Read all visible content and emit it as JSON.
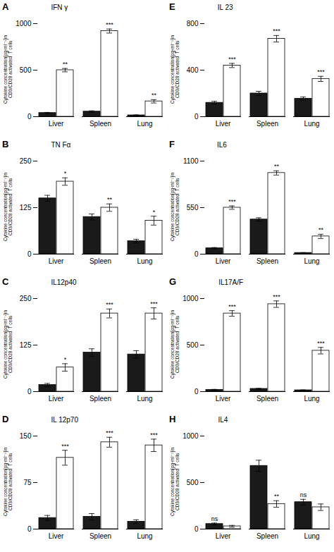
{
  "chart_data": [
    {
      "type": "bar",
      "label": "A",
      "title": "IFN γ",
      "ylabel": "Cytokine concentration[pg⋅ml⁻¹]in\nCD3/CD28 activated  T cells",
      "categories": [
        "Liver",
        "Spleen",
        "Lung"
      ],
      "ylim": [
        0,
        1000
      ],
      "yticks": [
        0,
        500,
        1000
      ],
      "grid": false,
      "series": [
        {
          "color": "#1a1a1a",
          "values": [
            40,
            55,
            15
          ],
          "errors": [
            6,
            8,
            4
          ],
          "annotations": [
            null,
            null,
            null
          ]
        },
        {
          "color": "#ffffff",
          "values": [
            500,
            920,
            165
          ],
          "errors": [
            18,
            22,
            18
          ],
          "annotations": [
            "**",
            "***",
            "**"
          ]
        }
      ]
    },
    {
      "type": "bar",
      "label": "B",
      "title": "TN Fα",
      "ylabel": "Cytokine concentration[pg⋅ml⁻¹]in\nCD3/CD28 activated  T cells",
      "categories": [
        "Liver",
        "Spleen",
        "Lung"
      ],
      "ylim": [
        0,
        250
      ],
      "yticks": [
        0,
        125,
        250
      ],
      "grid": false,
      "series": [
        {
          "color": "#1a1a1a",
          "values": [
            150,
            100,
            35
          ],
          "errors": [
            8,
            8,
            5
          ],
          "annotations": [
            null,
            null,
            null
          ]
        },
        {
          "color": "#ffffff",
          "values": [
            195,
            125,
            90
          ],
          "errors": [
            10,
            10,
            12
          ],
          "annotations": [
            "*",
            "**",
            "*"
          ]
        }
      ]
    },
    {
      "type": "bar",
      "label": "C",
      "title": "IL12p40",
      "ylabel": "Cytokine concentration[pg⋅ml⁻¹]in\nCD3/CD28 activated  T cells",
      "categories": [
        "Liver",
        "Spleen",
        "Lung"
      ],
      "ylim": [
        0,
        250
      ],
      "yticks": [
        0,
        125,
        250
      ],
      "grid": false,
      "series": [
        {
          "color": "#1a1a1a",
          "values": [
            18,
            105,
            100
          ],
          "errors": [
            4,
            10,
            10
          ],
          "annotations": [
            null,
            null,
            null
          ]
        },
        {
          "color": "#ffffff",
          "values": [
            65,
            210,
            210
          ],
          "errors": [
            10,
            12,
            15
          ],
          "annotations": [
            "*",
            "***",
            "***"
          ]
        }
      ]
    },
    {
      "type": "bar",
      "label": "D",
      "title": "IL 12p70",
      "ylabel": "Cytokine concentration[pg⋅ml⁻¹]in\nCD3/CD28 activated  T cells",
      "categories": [
        "Liver",
        "Spleen",
        "Lung"
      ],
      "ylim": [
        0,
        150
      ],
      "yticks": [
        0,
        75,
        150
      ],
      "grid": false,
      "series": [
        {
          "color": "#1a1a1a",
          "values": [
            18,
            20,
            12
          ],
          "errors": [
            4,
            5,
            3
          ],
          "annotations": [
            null,
            null,
            null
          ]
        },
        {
          "color": "#ffffff",
          "values": [
            115,
            140,
            135
          ],
          "errors": [
            12,
            8,
            10
          ],
          "annotations": [
            "***",
            "***",
            "***"
          ]
        }
      ]
    },
    {
      "type": "bar",
      "label": "E",
      "title": "IL 23",
      "ylabel": "Cytokine concentration[pg⋅ml⁻¹]in\nCD3/CD28 activated  T cells",
      "categories": [
        "Liver",
        "Spleen",
        "Lung"
      ],
      "ylim": [
        0,
        800
      ],
      "yticks": [
        0,
        400,
        800
      ],
      "grid": false,
      "series": [
        {
          "color": "#1a1a1a",
          "values": [
            120,
            200,
            155
          ],
          "errors": [
            12,
            18,
            14
          ],
          "annotations": [
            null,
            null,
            null
          ]
        },
        {
          "color": "#ffffff",
          "values": [
            440,
            670,
            325
          ],
          "errors": [
            18,
            28,
            22
          ],
          "annotations": [
            "***",
            "***",
            "***"
          ]
        }
      ]
    },
    {
      "type": "bar",
      "label": "F",
      "title": "IL6",
      "ylabel": "Cytokine concentration[pg⋅ml⁻¹]in\nCD3/CD28 activated  T cells",
      "categories": [
        "Liver",
        "Spleen",
        "Lung"
      ],
      "ylim": [
        0,
        1100
      ],
      "yticks": [
        0,
        550,
        1100
      ],
      "grid": false,
      "series": [
        {
          "color": "#1a1a1a",
          "values": [
            70,
            410,
            15
          ],
          "errors": [
            8,
            20,
            3
          ],
          "annotations": [
            null,
            null,
            null
          ]
        },
        {
          "color": "#ffffff",
          "values": [
            550,
            960,
            210
          ],
          "errors": [
            20,
            25,
            25
          ],
          "annotations": [
            "***",
            "**",
            "**"
          ]
        }
      ]
    },
    {
      "type": "bar",
      "label": "G",
      "title": "IL17A/F",
      "ylabel": "Cytokine concentration[pg⋅ml⁻¹]in\nCD3/CD28 activated  T cells",
      "categories": [
        "Liver",
        "Spleen",
        "Lung"
      ],
      "ylim": [
        0,
        1000
      ],
      "yticks": [
        0,
        500,
        1000
      ],
      "grid": false,
      "series": [
        {
          "color": "#1a1a1a",
          "values": [
            20,
            30,
            15
          ],
          "errors": [
            4,
            5,
            3
          ],
          "annotations": [
            null,
            null,
            null
          ]
        },
        {
          "color": "#ffffff",
          "values": [
            840,
            940,
            440
          ],
          "errors": [
            30,
            35,
            35
          ],
          "annotations": [
            "***",
            "***",
            "***"
          ]
        }
      ]
    },
    {
      "type": "bar",
      "label": "H",
      "title": "IL4",
      "ylabel": "Cytokine concentration[pg⋅ml⁻¹]in\nCD3/CD28 activated  T cells",
      "categories": [
        "Liver",
        "Spleen",
        "Lung"
      ],
      "ylim": [
        0,
        1000
      ],
      "yticks": [
        0,
        500,
        1000
      ],
      "grid": false,
      "series": [
        {
          "color": "#1a1a1a",
          "values": [
            55,
            680,
            290
          ],
          "errors": [
            10,
            60,
            30
          ],
          "annotations": [
            "ns",
            null,
            "ns"
          ]
        },
        {
          "color": "#ffffff",
          "values": [
            30,
            270,
            235
          ],
          "errors": [
            10,
            35,
            35
          ],
          "annotations": [
            null,
            "**",
            null
          ]
        }
      ]
    }
  ]
}
